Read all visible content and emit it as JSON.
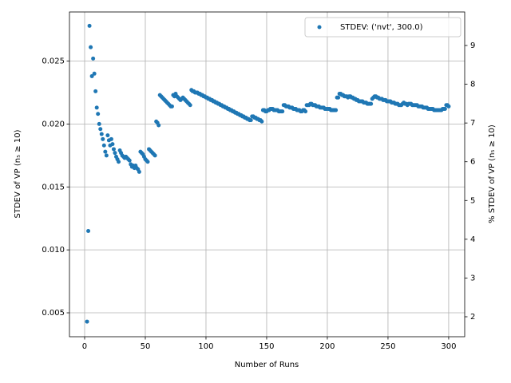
{
  "chart_data": {
    "type": "scatter",
    "xlabel": "Number of Runs",
    "ylabel": "STDEV of VP (n₅ ≥ 10)",
    "y2label": "% STDEV of VP (n₅ ≥ 10)",
    "legend": "upper right",
    "grid": true,
    "xlim": [
      -12.5,
      313.2
    ],
    "ylim": [
      0.0031,
      0.0289
    ],
    "y2lim": [
      1.485,
      9.865
    ],
    "xticks": [
      0,
      50,
      100,
      150,
      200,
      250,
      300
    ],
    "yticks": [
      0.005,
      {
        "value": 0.01,
        "label": "0.010"
      },
      0.015,
      {
        "value": 0.02,
        "label": "0.020"
      },
      0.025
    ],
    "y2ticks": [
      2,
      3,
      4,
      5,
      6,
      7,
      8,
      9
    ],
    "series": [
      {
        "name": "STDEV: ('nvt', 300.0)",
        "color": "#1f77b4",
        "x": [
          2,
          3,
          4,
          5,
          6,
          7,
          8,
          9,
          10,
          11,
          12,
          13,
          14,
          15,
          16,
          17,
          18,
          19,
          20,
          21,
          22,
          23,
          24,
          25,
          26,
          27,
          28,
          29,
          30,
          31,
          32,
          33,
          34,
          35,
          36,
          37,
          38,
          39,
          40,
          41,
          42,
          43,
          44,
          45,
          46,
          47,
          48,
          49,
          50,
          51,
          52,
          53,
          54,
          55,
          56,
          57,
          58,
          59,
          60,
          61,
          62,
          63,
          64,
          65,
          66,
          67,
          68,
          69,
          70,
          71,
          72,
          73,
          74,
          75,
          76,
          77,
          78,
          79,
          80,
          81,
          82,
          83,
          84,
          85,
          86,
          87,
          88,
          89,
          90,
          91,
          92,
          93,
          94,
          95,
          96,
          97,
          98,
          99,
          100,
          101,
          102,
          103,
          104,
          105,
          106,
          107,
          108,
          109,
          110,
          111,
          112,
          113,
          114,
          115,
          116,
          117,
          118,
          119,
          120,
          121,
          122,
          123,
          124,
          125,
          126,
          127,
          128,
          129,
          130,
          131,
          132,
          133,
          134,
          135,
          136,
          137,
          138,
          139,
          140,
          141,
          142,
          143,
          144,
          145,
          146,
          147,
          148,
          149,
          150,
          151,
          152,
          153,
          154,
          155,
          156,
          157,
          158,
          159,
          160,
          161,
          162,
          163,
          164,
          165,
          166,
          167,
          168,
          169,
          170,
          171,
          172,
          173,
          174,
          175,
          176,
          177,
          178,
          179,
          180,
          181,
          182,
          183,
          184,
          185,
          186,
          187,
          188,
          189,
          190,
          191,
          192,
          193,
          194,
          195,
          196,
          197,
          198,
          199,
          200,
          201,
          202,
          203,
          204,
          205,
          206,
          207,
          208,
          209,
          210,
          211,
          212,
          213,
          214,
          215,
          216,
          217,
          218,
          219,
          220,
          221,
          222,
          223,
          224,
          225,
          226,
          227,
          228,
          229,
          230,
          231,
          232,
          233,
          234,
          235,
          236,
          237,
          238,
          239,
          240,
          241,
          242,
          243,
          244,
          245,
          246,
          247,
          248,
          249,
          250,
          251,
          252,
          253,
          254,
          255,
          256,
          257,
          258,
          259,
          260,
          261,
          262,
          263,
          264,
          265,
          266,
          267,
          268,
          269,
          270,
          271,
          272,
          273,
          274,
          275,
          276,
          277,
          278,
          279,
          280,
          281,
          282,
          283,
          284,
          285,
          286,
          287,
          288,
          289,
          290,
          291,
          292,
          293,
          294,
          295,
          296,
          297,
          298,
          299,
          300
        ],
        "values": [
          0.0043,
          0.0115,
          0.0278,
          0.0261,
          0.0238,
          0.0252,
          0.024,
          0.0226,
          0.0213,
          0.0208,
          0.02,
          0.0196,
          0.0192,
          0.0188,
          0.0183,
          0.0178,
          0.0175,
          0.0191,
          0.0187,
          0.0183,
          0.0188,
          0.0184,
          0.018,
          0.0177,
          0.0174,
          0.0172,
          0.017,
          0.0179,
          0.0177,
          0.0175,
          0.0174,
          0.0173,
          0.0174,
          0.0173,
          0.0172,
          0.0171,
          0.0168,
          0.0166,
          0.0167,
          0.0165,
          0.0167,
          0.0165,
          0.0164,
          0.0162,
          0.0178,
          0.0177,
          0.0176,
          0.0174,
          0.0172,
          0.0171,
          0.017,
          0.018,
          0.0179,
          0.0178,
          0.0177,
          0.0176,
          0.0175,
          0.0202,
          0.0201,
          0.0199,
          0.0223,
          0.0222,
          0.0221,
          0.022,
          0.0219,
          0.0218,
          0.0217,
          0.0216,
          0.0215,
          0.0214,
          0.0214,
          0.0223,
          0.0222,
          0.0224,
          0.0222,
          0.0221,
          0.022,
          0.0219,
          0.022,
          0.0221,
          0.022,
          0.0219,
          0.0218,
          0.0217,
          0.0216,
          0.0215,
          0.0227,
          0.0226,
          0.0226,
          0.0225,
          0.0225,
          0.0225,
          0.0224,
          0.0224,
          0.0223,
          0.0223,
          0.0222,
          0.0222,
          0.0221,
          0.0221,
          0.022,
          0.022,
          0.0219,
          0.0219,
          0.0218,
          0.0218,
          0.0217,
          0.0217,
          0.0216,
          0.0216,
          0.0215,
          0.0215,
          0.0214,
          0.0214,
          0.0213,
          0.0213,
          0.0212,
          0.0212,
          0.0211,
          0.0211,
          0.021,
          0.021,
          0.0209,
          0.0209,
          0.0208,
          0.0208,
          0.0207,
          0.0207,
          0.0206,
          0.0206,
          0.0205,
          0.0205,
          0.0204,
          0.0204,
          0.0203,
          0.0203,
          0.0206,
          0.0206,
          0.0205,
          0.0205,
          0.0204,
          0.0204,
          0.0203,
          0.0203,
          0.0202,
          0.0211,
          0.0211,
          0.021,
          0.021,
          0.0211,
          0.0211,
          0.0212,
          0.0212,
          0.0212,
          0.0211,
          0.0211,
          0.0211,
          0.0211,
          0.021,
          0.021,
          0.021,
          0.021,
          0.0215,
          0.0215,
          0.0214,
          0.0214,
          0.0214,
          0.0213,
          0.0213,
          0.0213,
          0.0212,
          0.0212,
          0.0212,
          0.0211,
          0.0211,
          0.0211,
          0.021,
          0.021,
          0.0211,
          0.0211,
          0.021,
          0.0215,
          0.0215,
          0.0215,
          0.0216,
          0.0216,
          0.0215,
          0.0215,
          0.0215,
          0.0214,
          0.0214,
          0.0214,
          0.0213,
          0.0213,
          0.0213,
          0.0213,
          0.0212,
          0.0212,
          0.0212,
          0.0212,
          0.0212,
          0.0211,
          0.0211,
          0.0211,
          0.0211,
          0.0211,
          0.0221,
          0.0221,
          0.0224,
          0.0224,
          0.0223,
          0.0223,
          0.0222,
          0.0222,
          0.0222,
          0.0221,
          0.0222,
          0.0222,
          0.0221,
          0.0221,
          0.022,
          0.022,
          0.0219,
          0.0219,
          0.0218,
          0.0218,
          0.0218,
          0.0218,
          0.0217,
          0.0217,
          0.0217,
          0.0216,
          0.0216,
          0.0216,
          0.0216,
          0.022,
          0.0221,
          0.0222,
          0.0222,
          0.0221,
          0.0221,
          0.022,
          0.022,
          0.022,
          0.0219,
          0.0219,
          0.0219,
          0.0218,
          0.0218,
          0.0218,
          0.0218,
          0.0217,
          0.0217,
          0.0217,
          0.0216,
          0.0216,
          0.0216,
          0.0215,
          0.0215,
          0.0215,
          0.0216,
          0.0217,
          0.0216,
          0.0216,
          0.0215,
          0.0216,
          0.0216,
          0.0216,
          0.0215,
          0.0215,
          0.0215,
          0.0215,
          0.0215,
          0.0214,
          0.0214,
          0.0214,
          0.0214,
          0.0213,
          0.0213,
          0.0213,
          0.0213,
          0.0212,
          0.0212,
          0.0212,
          0.0212,
          0.0212,
          0.0211,
          0.0211,
          0.0211,
          0.0211,
          0.0211,
          0.0211,
          0.0211,
          0.0212,
          0.0212,
          0.0212,
          0.0215,
          0.0215,
          0.0214
        ]
      }
    ]
  }
}
